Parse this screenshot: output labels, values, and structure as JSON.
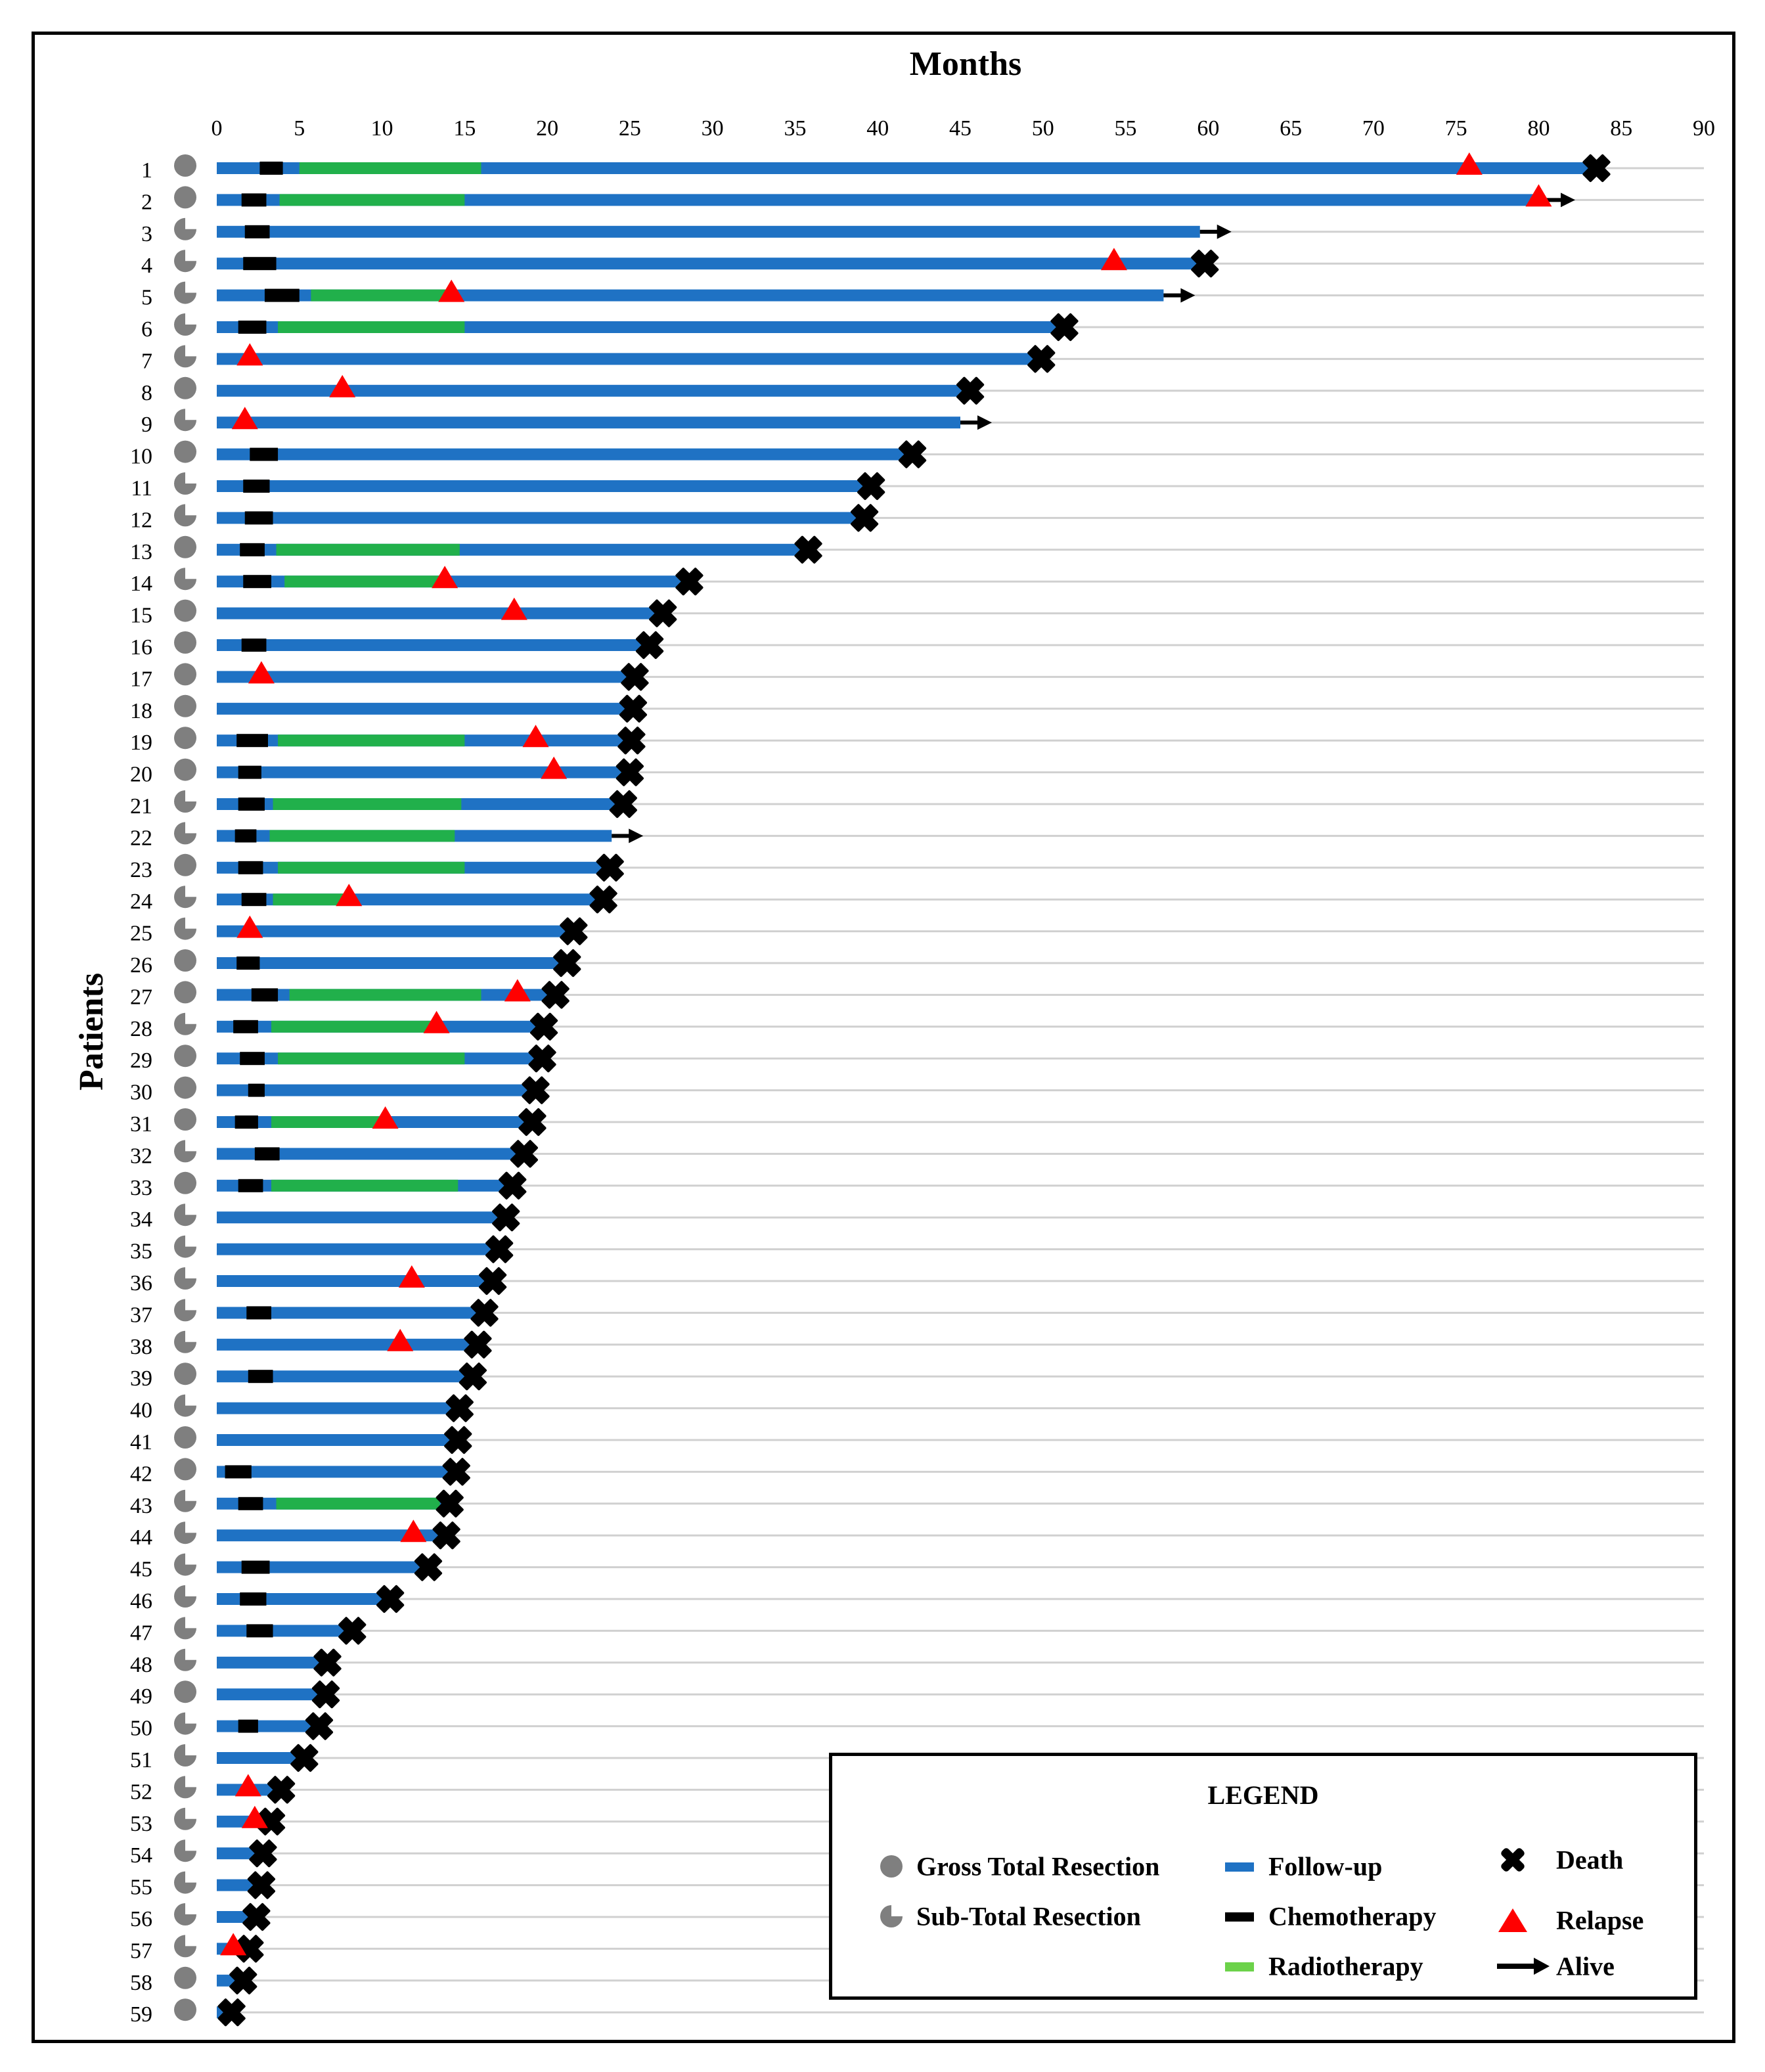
{
  "chart_data": {
    "type": "swimmer",
    "title": "Months",
    "xlabel": "Months",
    "ylabel": "Patients",
    "xlim": [
      0,
      90
    ],
    "xticks": [
      0,
      5,
      10,
      15,
      20,
      25,
      30,
      35,
      40,
      45,
      50,
      55,
      60,
      65,
      70,
      75,
      80,
      85,
      90
    ],
    "grid": true,
    "legend_position": "bottom-right",
    "colors": {
      "followup": "#1f72c4",
      "chemo": "#000000",
      "radio": "#21b04b",
      "relapse": "#ff0000",
      "death": "#000000",
      "alive": "#000000",
      "resection": "#7f7f7f",
      "gridline": "#d0d0d0"
    },
    "patients": [
      {
        "id": "1",
        "resection": "GTR",
        "end": 83.5,
        "outcome": "death",
        "chemo": [
          2.6,
          4.0
        ],
        "radio": [
          5.0,
          16.0
        ],
        "relapse": [
          75.8
        ]
      },
      {
        "id": "2",
        "resection": "GTR",
        "end": 80.3,
        "outcome": "alive",
        "chemo": [
          1.5,
          3.0
        ],
        "radio": [
          3.8,
          15.0
        ],
        "relapse": [
          80.0
        ]
      },
      {
        "id": "3",
        "resection": "STR",
        "end": 59.5,
        "outcome": "alive",
        "chemo": [
          1.7,
          3.2
        ],
        "radio": null,
        "relapse": []
      },
      {
        "id": "4",
        "resection": "STR",
        "end": 59.8,
        "outcome": "death",
        "chemo": [
          1.6,
          3.6
        ],
        "radio": null,
        "relapse": [
          54.3
        ]
      },
      {
        "id": "5",
        "resection": "STR",
        "end": 57.3,
        "outcome": "alive",
        "chemo": [
          2.9,
          5.0
        ],
        "radio": [
          5.7,
          14.0
        ],
        "relapse": [
          14.2
        ]
      },
      {
        "id": "6",
        "resection": "STR",
        "end": 51.3,
        "outcome": "death",
        "chemo": [
          1.3,
          3.0
        ],
        "radio": [
          3.7,
          15.0
        ],
        "relapse": []
      },
      {
        "id": "7",
        "resection": "STR",
        "end": 49.9,
        "outcome": "death",
        "chemo": null,
        "radio": null,
        "relapse": [
          2.0
        ]
      },
      {
        "id": "8",
        "resection": "GTR",
        "end": 45.6,
        "outcome": "death",
        "chemo": null,
        "radio": null,
        "relapse": [
          7.6
        ]
      },
      {
        "id": "9",
        "resection": "STR",
        "end": 45.0,
        "outcome": "alive",
        "chemo": null,
        "radio": null,
        "relapse": [
          1.7
        ]
      },
      {
        "id": "10",
        "resection": "GTR",
        "end": 42.1,
        "outcome": "death",
        "chemo": [
          2.0,
          3.7
        ],
        "radio": null,
        "relapse": []
      },
      {
        "id": "11",
        "resection": "STR",
        "end": 39.6,
        "outcome": "death",
        "chemo": [
          1.6,
          3.2
        ],
        "radio": null,
        "relapse": []
      },
      {
        "id": "12",
        "resection": "STR",
        "end": 39.2,
        "outcome": "death",
        "chemo": [
          1.7,
          3.4
        ],
        "radio": null,
        "relapse": []
      },
      {
        "id": "13",
        "resection": "GTR",
        "end": 35.8,
        "outcome": "death",
        "chemo": [
          1.4,
          2.9
        ],
        "radio": [
          3.6,
          14.7
        ],
        "relapse": []
      },
      {
        "id": "14",
        "resection": "STR",
        "end": 28.6,
        "outcome": "death",
        "chemo": [
          1.6,
          3.3
        ],
        "radio": [
          4.1,
          14.0
        ],
        "relapse": [
          13.8
        ]
      },
      {
        "id": "15",
        "resection": "GTR",
        "end": 27.0,
        "outcome": "death",
        "chemo": null,
        "radio": null,
        "relapse": [
          18.0
        ]
      },
      {
        "id": "16",
        "resection": "GTR",
        "end": 26.2,
        "outcome": "death",
        "chemo": [
          1.5,
          3.0
        ],
        "radio": null,
        "relapse": []
      },
      {
        "id": "17",
        "resection": "GTR",
        "end": 25.3,
        "outcome": "death",
        "chemo": null,
        "radio": null,
        "relapse": [
          2.7
        ]
      },
      {
        "id": "18",
        "resection": "GTR",
        "end": 25.2,
        "outcome": "death",
        "chemo": null,
        "radio": null,
        "relapse": []
      },
      {
        "id": "19",
        "resection": "GTR",
        "end": 25.1,
        "outcome": "death",
        "chemo": [
          1.2,
          3.1
        ],
        "radio": [
          3.7,
          15.0
        ],
        "relapse": [
          19.3
        ]
      },
      {
        "id": "20",
        "resection": "GTR",
        "end": 25.0,
        "outcome": "death",
        "chemo": [
          1.3,
          2.7
        ],
        "radio": null,
        "relapse": [
          20.4
        ]
      },
      {
        "id": "21",
        "resection": "STR",
        "end": 24.6,
        "outcome": "death",
        "chemo": [
          1.3,
          2.9
        ],
        "radio": [
          3.4,
          14.8
        ],
        "relapse": []
      },
      {
        "id": "22",
        "resection": "STR",
        "end": 23.9,
        "outcome": "alive",
        "chemo": [
          1.1,
          2.4
        ],
        "radio": [
          3.2,
          14.4
        ],
        "relapse": []
      },
      {
        "id": "23",
        "resection": "GTR",
        "end": 23.8,
        "outcome": "death",
        "chemo": [
          1.3,
          2.8
        ],
        "radio": [
          3.7,
          15.0
        ],
        "relapse": []
      },
      {
        "id": "24",
        "resection": "STR",
        "end": 23.4,
        "outcome": "death",
        "chemo": [
          1.5,
          3.0
        ],
        "radio": [
          3.4,
          8.0
        ],
        "relapse": [
          8.0
        ]
      },
      {
        "id": "25",
        "resection": "STR",
        "end": 21.6,
        "outcome": "death",
        "chemo": null,
        "radio": null,
        "relapse": [
          2.0
        ]
      },
      {
        "id": "26",
        "resection": "GTR",
        "end": 21.2,
        "outcome": "death",
        "chemo": [
          1.2,
          2.6
        ],
        "radio": null,
        "relapse": []
      },
      {
        "id": "27",
        "resection": "GTR",
        "end": 20.5,
        "outcome": "death",
        "chemo": [
          2.1,
          3.7
        ],
        "radio": [
          4.4,
          16.0
        ],
        "relapse": [
          18.2
        ]
      },
      {
        "id": "28",
        "resection": "STR",
        "end": 19.8,
        "outcome": "death",
        "chemo": [
          1.0,
          2.5
        ],
        "radio": [
          3.3,
          13.3
        ],
        "relapse": [
          13.3
        ]
      },
      {
        "id": "29",
        "resection": "GTR",
        "end": 19.7,
        "outcome": "death",
        "chemo": [
          1.4,
          2.9
        ],
        "radio": [
          3.7,
          15.0
        ],
        "relapse": []
      },
      {
        "id": "30",
        "resection": "GTR",
        "end": 19.3,
        "outcome": "death",
        "chemo": [
          1.9,
          2.9
        ],
        "radio": null,
        "relapse": []
      },
      {
        "id": "31",
        "resection": "GTR",
        "end": 19.1,
        "outcome": "death",
        "chemo": [
          1.1,
          2.5
        ],
        "radio": [
          3.3,
          10.2
        ],
        "relapse": [
          10.2
        ]
      },
      {
        "id": "32",
        "resection": "STR",
        "end": 18.6,
        "outcome": "death",
        "chemo": [
          2.3,
          3.8
        ],
        "radio": null,
        "relapse": []
      },
      {
        "id": "33",
        "resection": "GTR",
        "end": 17.9,
        "outcome": "death",
        "chemo": [
          1.3,
          2.8
        ],
        "radio": [
          3.3,
          14.6
        ],
        "relapse": []
      },
      {
        "id": "34",
        "resection": "STR",
        "end": 17.5,
        "outcome": "death",
        "chemo": null,
        "radio": null,
        "relapse": []
      },
      {
        "id": "35",
        "resection": "STR",
        "end": 17.1,
        "outcome": "death",
        "chemo": null,
        "radio": null,
        "relapse": []
      },
      {
        "id": "36",
        "resection": "STR",
        "end": 16.7,
        "outcome": "death",
        "chemo": null,
        "radio": null,
        "relapse": [
          11.8
        ]
      },
      {
        "id": "37",
        "resection": "STR",
        "end": 16.2,
        "outcome": "death",
        "chemo": [
          1.8,
          3.3
        ],
        "radio": null,
        "relapse": []
      },
      {
        "id": "38",
        "resection": "STR",
        "end": 15.8,
        "outcome": "death",
        "chemo": null,
        "radio": null,
        "relapse": [
          11.1
        ]
      },
      {
        "id": "39",
        "resection": "GTR",
        "end": 15.5,
        "outcome": "death",
        "chemo": [
          1.9,
          3.4
        ],
        "radio": null,
        "relapse": []
      },
      {
        "id": "40",
        "resection": "STR",
        "end": 14.7,
        "outcome": "death",
        "chemo": null,
        "radio": null,
        "relapse": []
      },
      {
        "id": "41",
        "resection": "GTR",
        "end": 14.6,
        "outcome": "death",
        "chemo": null,
        "radio": null,
        "relapse": []
      },
      {
        "id": "42",
        "resection": "GTR",
        "end": 14.5,
        "outcome": "death",
        "chemo": [
          0.5,
          2.1
        ],
        "radio": null,
        "relapse": []
      },
      {
        "id": "43",
        "resection": "STR",
        "end": 14.1,
        "outcome": "death",
        "chemo": [
          1.3,
          2.8
        ],
        "radio": [
          3.6,
          13.5
        ],
        "relapse": []
      },
      {
        "id": "44",
        "resection": "STR",
        "end": 13.9,
        "outcome": "death",
        "chemo": null,
        "radio": null,
        "relapse": [
          11.9
        ]
      },
      {
        "id": "45",
        "resection": "STR",
        "end": 12.8,
        "outcome": "death",
        "chemo": [
          1.5,
          3.2
        ],
        "radio": null,
        "relapse": []
      },
      {
        "id": "46",
        "resection": "STR",
        "end": 10.5,
        "outcome": "death",
        "chemo": [
          1.4,
          3.0
        ],
        "radio": null,
        "relapse": []
      },
      {
        "id": "47",
        "resection": "STR",
        "end": 8.2,
        "outcome": "death",
        "chemo": [
          1.8,
          3.4
        ],
        "radio": null,
        "relapse": []
      },
      {
        "id": "48",
        "resection": "STR",
        "end": 6.7,
        "outcome": "death",
        "chemo": null,
        "radio": null,
        "relapse": []
      },
      {
        "id": "49",
        "resection": "GTR",
        "end": 6.6,
        "outcome": "death",
        "chemo": null,
        "radio": null,
        "relapse": []
      },
      {
        "id": "50",
        "resection": "STR",
        "end": 6.2,
        "outcome": "death",
        "chemo": [
          1.3,
          2.5
        ],
        "radio": null,
        "relapse": []
      },
      {
        "id": "51",
        "resection": "STR",
        "end": 5.3,
        "outcome": "death",
        "chemo": null,
        "radio": null,
        "relapse": []
      },
      {
        "id": "52",
        "resection": "STR",
        "end": 3.9,
        "outcome": "death",
        "chemo": null,
        "radio": null,
        "relapse": [
          1.9
        ]
      },
      {
        "id": "53",
        "resection": "STR",
        "end": 3.3,
        "outcome": "death",
        "chemo": null,
        "radio": null,
        "relapse": [
          2.3
        ]
      },
      {
        "id": "54",
        "resection": "STR",
        "end": 2.8,
        "outcome": "death",
        "chemo": null,
        "radio": null,
        "relapse": []
      },
      {
        "id": "55",
        "resection": "STR",
        "end": 2.7,
        "outcome": "death",
        "chemo": null,
        "radio": null,
        "relapse": []
      },
      {
        "id": "56",
        "resection": "STR",
        "end": 2.4,
        "outcome": "death",
        "chemo": null,
        "radio": null,
        "relapse": []
      },
      {
        "id": "57",
        "resection": "STR",
        "end": 2.0,
        "outcome": "death",
        "chemo": null,
        "radio": null,
        "relapse": [
          1.0
        ]
      },
      {
        "id": "58",
        "resection": "GTR",
        "end": 1.6,
        "outcome": "death",
        "chemo": null,
        "radio": null,
        "relapse": []
      },
      {
        "id": "59",
        "resection": "GTR",
        "end": 0.9,
        "outcome": "death",
        "chemo": null,
        "radio": null,
        "relapse": []
      }
    ]
  },
  "legend": {
    "title": "LEGEND",
    "gtr": "Gross Total Resection",
    "str": "Sub-Total Resection",
    "followup": "Follow-up",
    "chemo": "Chemotherapy",
    "radio": "Radiotherapy",
    "death": "Death",
    "relapse": "Relapse",
    "alive": "Alive"
  }
}
